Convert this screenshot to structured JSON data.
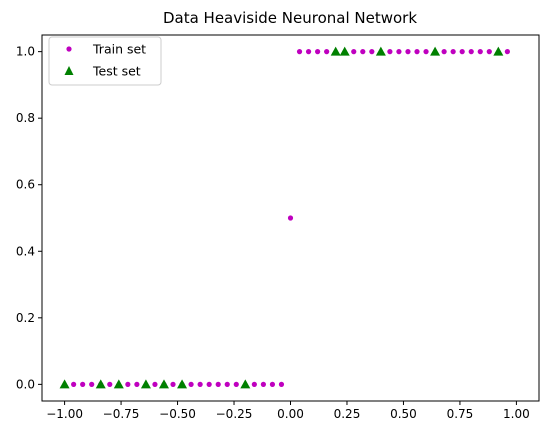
{
  "chart_data": {
    "type": "scatter",
    "title": "Data Heaviside Neuronal Network",
    "xlabel": "",
    "ylabel": "",
    "xlim": [
      -1.1,
      1.1
    ],
    "ylim": [
      -0.05,
      1.05
    ],
    "x_ticks": [
      -1.0,
      -0.75,
      -0.5,
      -0.25,
      0.0,
      0.25,
      0.5,
      0.75,
      1.0
    ],
    "x_tick_labels": [
      "−1.00",
      "−0.75",
      "−0.50",
      "−0.25",
      "0.00",
      "0.25",
      "0.50",
      "0.75",
      "1.00"
    ],
    "y_ticks": [
      0.0,
      0.2,
      0.4,
      0.6,
      0.8,
      1.0
    ],
    "y_tick_labels": [
      "0.0",
      "0.2",
      "0.4",
      "0.6",
      "0.8",
      "1.0"
    ],
    "grid": false,
    "legend_position": "top-left",
    "series": [
      {
        "name": "Train set",
        "marker": "circle",
        "color": "#bf00bf",
        "x": [
          -0.96,
          -0.92,
          -0.88,
          -0.84,
          -0.8,
          -0.72,
          -0.68,
          -0.6,
          -0.56,
          -0.52,
          -0.48,
          -0.44,
          -0.4,
          -0.36,
          -0.32,
          -0.28,
          -0.24,
          -0.16,
          -0.12,
          -0.08,
          -0.04,
          0.0,
          0.04,
          0.08,
          0.12,
          0.16,
          0.28,
          0.32,
          0.36,
          0.44,
          0.48,
          0.52,
          0.56,
          0.6,
          0.68,
          0.72,
          0.76,
          0.8,
          0.84,
          0.88,
          0.96
        ],
        "y": [
          0,
          0,
          0,
          0,
          0,
          0,
          0,
          0,
          0,
          0,
          0,
          0,
          0,
          0,
          0,
          0,
          0,
          0,
          0,
          0,
          0,
          0.5,
          1,
          1,
          1,
          1,
          1,
          1,
          1,
          1,
          1,
          1,
          1,
          1,
          1,
          1,
          1,
          1,
          1,
          1,
          1
        ]
      },
      {
        "name": "Test set",
        "marker": "triangle",
        "color": "#008000",
        "x": [
          -1.0,
          -0.84,
          -0.76,
          -0.64,
          -0.56,
          -0.48,
          -0.2,
          0.2,
          0.24,
          0.4,
          0.64,
          0.92
        ],
        "y": [
          0,
          0,
          0,
          0,
          0,
          0,
          0,
          1,
          1,
          1,
          1,
          1
        ]
      }
    ]
  }
}
